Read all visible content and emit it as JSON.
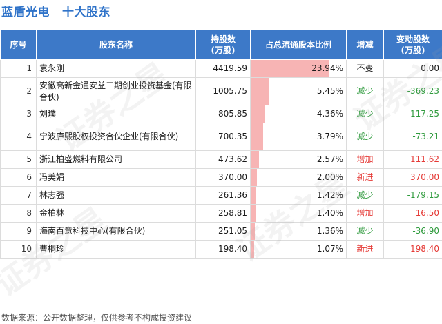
{
  "header": {
    "company": "蓝盾光电",
    "subtitle": "十大股东"
  },
  "table": {
    "columns": [
      "序号",
      "股东名称",
      "持股数\n(万股)",
      "占总流通股本比例",
      "增减",
      "变动股数\n(万股)"
    ],
    "rows": [
      {
        "idx": "1",
        "name": "袁永刚",
        "shares": "4419.59",
        "ratio": "23.94%",
        "ratio_value": 23.94,
        "change": "不变",
        "change_color": "black",
        "delta": "0.00",
        "delta_color": "black"
      },
      {
        "idx": "2",
        "name": "安徽高新金通安益二期创业投资基金(有限合伙)",
        "shares": "1005.75",
        "ratio": "5.45%",
        "ratio_value": 5.45,
        "change": "减少",
        "change_color": "green",
        "delta": "-369.23",
        "delta_color": "green"
      },
      {
        "idx": "3",
        "name": "刘璞",
        "shares": "805.85",
        "ratio": "4.36%",
        "ratio_value": 4.36,
        "change": "减少",
        "change_color": "green",
        "delta": "-117.25",
        "delta_color": "green"
      },
      {
        "idx": "4",
        "name": "宁波庐熙股权投资合伙企业(有限合伙)",
        "shares": "700.35",
        "ratio": "3.79%",
        "ratio_value": 3.79,
        "change": "减少",
        "change_color": "green",
        "delta": "-73.21",
        "delta_color": "green"
      },
      {
        "idx": "5",
        "name": "浙江柏盛燃料有限公司",
        "shares": "473.62",
        "ratio": "2.57%",
        "ratio_value": 2.57,
        "change": "增加",
        "change_color": "red",
        "delta": "111.62",
        "delta_color": "red"
      },
      {
        "idx": "6",
        "name": "冯美娟",
        "shares": "370.00",
        "ratio": "2.00%",
        "ratio_value": 2.0,
        "change": "新进",
        "change_color": "red",
        "delta": "370.00",
        "delta_color": "red"
      },
      {
        "idx": "7",
        "name": "林志强",
        "shares": "261.36",
        "ratio": "1.42%",
        "ratio_value": 1.42,
        "change": "减少",
        "change_color": "green",
        "delta": "-179.15",
        "delta_color": "green"
      },
      {
        "idx": "8",
        "name": "金柏林",
        "shares": "258.81",
        "ratio": "1.40%",
        "ratio_value": 1.4,
        "change": "增加",
        "change_color": "red",
        "delta": "16.50",
        "delta_color": "red"
      },
      {
        "idx": "9",
        "name": "海南百意科技中心(有限合伙)",
        "shares": "251.05",
        "ratio": "1.36%",
        "ratio_value": 1.36,
        "change": "减少",
        "change_color": "green",
        "delta": "-36.90",
        "delta_color": "green"
      },
      {
        "idx": "10",
        "name": "曹桐珍",
        "shares": "198.40",
        "ratio": "1.07%",
        "ratio_value": 1.07,
        "change": "新进",
        "change_color": "red",
        "delta": "198.40",
        "delta_color": "red"
      }
    ]
  },
  "footer": {
    "source": "数据来源：公开数据整理，仅供参考不构成投资建议"
  },
  "colors": {
    "title": "#2f73c9",
    "header_bg": "#3d79c8",
    "bar": "#f7b4b4",
    "up": "#e53935",
    "down": "#2e9a3c"
  }
}
